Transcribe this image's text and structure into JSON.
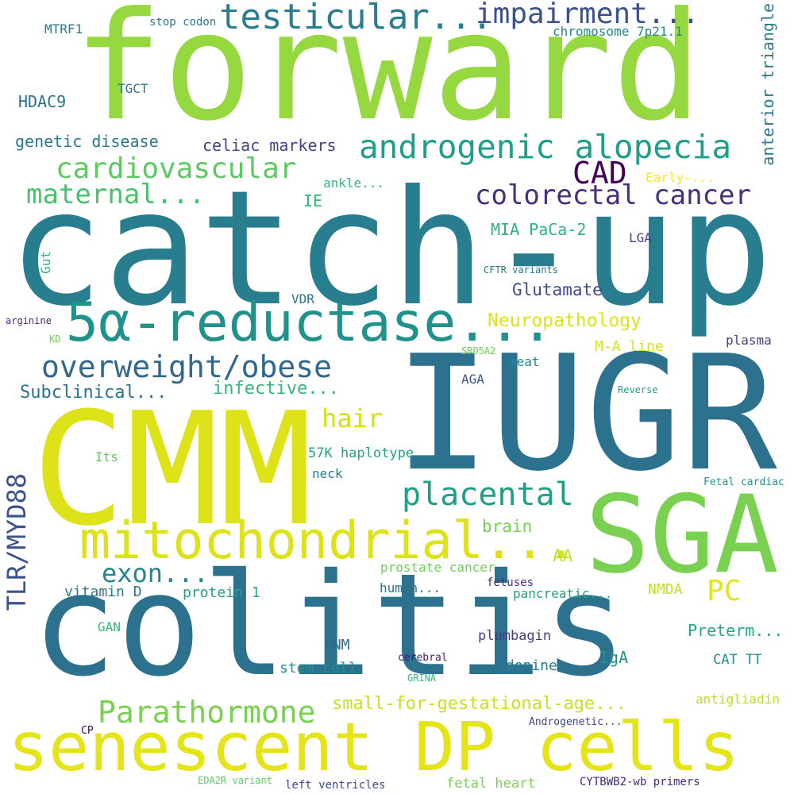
{
  "words": [
    {
      "text": "forward",
      "color": "#95d840"
    },
    {
      "text": "catch-up",
      "color": "#287d8e"
    },
    {
      "text": "IUGR",
      "color": "#2c728e"
    },
    {
      "text": "CMM",
      "color": "#dde318"
    },
    {
      "text": "colitis",
      "color": "#2c728e"
    },
    {
      "text": "SGA",
      "color": "#7ad151"
    },
    {
      "text": "senescent DP cells",
      "color": "#e5e419"
    },
    {
      "text": "5α-reductase...",
      "color": "#21918c"
    },
    {
      "text": "mitochondrial...",
      "color": "#dde318"
    },
    {
      "text": "testicular...",
      "color": "#287d8e"
    },
    {
      "text": "impairment...",
      "color": "#3b528b"
    },
    {
      "text": "androgenic alopecia",
      "color": "#1f9e89"
    },
    {
      "text": "cardiovascular",
      "color": "#5ec962"
    },
    {
      "text": "CAD",
      "color": "#440154"
    },
    {
      "text": "maternal...",
      "color": "#4ac16d"
    },
    {
      "text": "colorectal cancer",
      "color": "#472d7b"
    },
    {
      "text": "overweight/obese",
      "color": "#31688e"
    },
    {
      "text": "placental",
      "color": "#1f9e89"
    },
    {
      "text": "Parathormone",
      "color": "#7ad151"
    },
    {
      "text": "TLR/MYD88",
      "color": "#3b528b"
    },
    {
      "text": "exon...",
      "color": "#25858e"
    },
    {
      "text": "hair",
      "color": "#d0e11c"
    },
    {
      "text": "PC",
      "color": "#e5e419"
    },
    {
      "text": "small-for-gestational-age...",
      "color": "#c8e020"
    },
    {
      "text": "anterior triangle",
      "color": "#2a788e"
    },
    {
      "text": "Neuropathology",
      "color": "#dde318"
    },
    {
      "text": "Glutamate",
      "color": "#3e4989"
    },
    {
      "text": "MIA PaCa-2",
      "color": "#2fb47c"
    },
    {
      "text": "Subclinical...",
      "color": "#2c728e"
    },
    {
      "text": "infective...",
      "color": "#35b779"
    },
    {
      "text": "celiac markers",
      "color": "#414487"
    },
    {
      "text": "genetic disease",
      "color": "#2a788e"
    },
    {
      "text": "HDAC9",
      "color": "#2c728e"
    },
    {
      "text": "MTRF1",
      "color": "#2a788e"
    },
    {
      "text": "stop codon",
      "color": "#2a788e"
    },
    {
      "text": "chromosome 7p21.1",
      "color": "#25858e"
    },
    {
      "text": "TGCT",
      "color": "#2a788e"
    },
    {
      "text": "IE",
      "color": "#35b779"
    },
    {
      "text": "ankle...",
      "color": "#35b779"
    },
    {
      "text": "Early-...",
      "color": "#fde725"
    },
    {
      "text": "LGA",
      "color": "#433e85"
    },
    {
      "text": "Gut",
      "color": "#35b779"
    },
    {
      "text": "CFTR variants",
      "color": "#2a788e"
    },
    {
      "text": "VDR",
      "color": "#2c728e"
    },
    {
      "text": "arginine",
      "color": "#482878"
    },
    {
      "text": "KD",
      "color": "#6ece58"
    },
    {
      "text": "plasma",
      "color": "#433e85"
    },
    {
      "text": "M-A line",
      "color": "#d8e219"
    },
    {
      "text": "meat",
      "color": "#25858e"
    },
    {
      "text": "SRD5A2",
      "color": "#6ece58"
    },
    {
      "text": "AGA",
      "color": "#3b528b"
    },
    {
      "text": "Reverse",
      "color": "#1fa088"
    },
    {
      "text": "57K haplotype",
      "color": "#20a486"
    },
    {
      "text": "Its",
      "color": "#5ec962"
    },
    {
      "text": "neck",
      "color": "#2a788e"
    },
    {
      "text": "brain",
      "color": "#75d054"
    },
    {
      "text": "Fetal cardiac",
      "color": "#21918c"
    },
    {
      "text": "AA",
      "color": "#c2df23"
    },
    {
      "text": "prostate cancer",
      "color": "#6ece58"
    },
    {
      "text": "fetuses",
      "color": "#472d7b"
    },
    {
      "text": "vitamin D",
      "color": "#2a788e"
    },
    {
      "text": "protein 1",
      "color": "#20a486"
    },
    {
      "text": "human...",
      "color": "#2c728e"
    },
    {
      "text": "pancreatic...",
      "color": "#1fa088"
    },
    {
      "text": "NMDA",
      "color": "#c2df23"
    },
    {
      "text": "Preterm...",
      "color": "#22a884"
    },
    {
      "text": "GAN",
      "color": "#35b779"
    },
    {
      "text": "CNM",
      "color": "#31688e"
    },
    {
      "text": "plumbagin",
      "color": "#433e85"
    },
    {
      "text": "IgA",
      "color": "#21918c"
    },
    {
      "text": "stem cell",
      "color": "#21918c"
    },
    {
      "text": "cerebral",
      "color": "#481a6c"
    },
    {
      "text": "adenine",
      "color": "#287d8e"
    },
    {
      "text": "GRINA",
      "color": "#35b779"
    },
    {
      "text": "CAT TT",
      "color": "#21918c"
    },
    {
      "text": "antigliadin",
      "color": "#bddf26"
    },
    {
      "text": "CP",
      "color": "#440154"
    },
    {
      "text": "Androgenetic...",
      "color": "#414487"
    },
    {
      "text": "EDA2R variant",
      "color": "#5ec962"
    },
    {
      "text": "left ventricles",
      "color": "#3e4989"
    },
    {
      "text": "fetal heart",
      "color": "#7ad151"
    },
    {
      "text": "CYTBWB2-wb primers",
      "color": "#482878"
    }
  ]
}
